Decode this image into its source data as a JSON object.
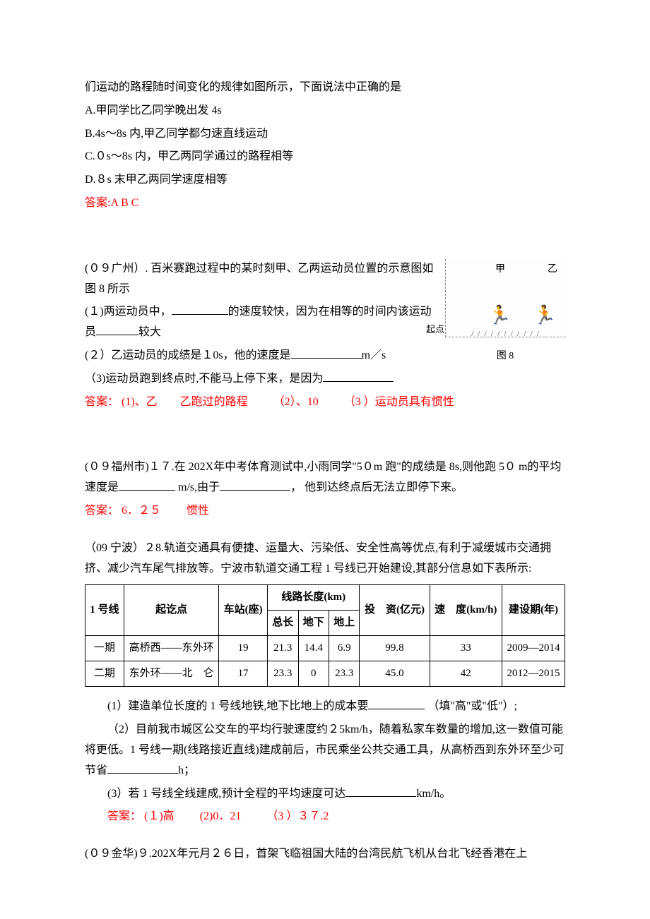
{
  "q1": {
    "stem": "们运动的路程随时间变化的规律如图所示，下面说法中正确的是",
    "optA": "A.甲同学比乙同学晚出发 4s",
    "optB": "B.4s～8s 内,甲乙同学都匀速直线运动",
    "optC": "C.０s～8s 内，甲乙两同学通过的路程相等",
    "optD": "D.８s 末甲乙两同学速度相等",
    "answer": "答案:A B C"
  },
  "q2": {
    "src": "(０９广州）. 百米赛跑过程中的某时刻甲、乙两运动员位置的示意图如图 8 所示",
    "p1a": "(１)两运动员中，",
    "p1b": "的速度较快，因为在相等的时间内该运动员",
    "p1c": "较大",
    "p2a": "(２）乙运动员的成绩是１0s，他的速度是",
    "p2b": "m／s",
    "p3a": "（3)运动员跑到终点时,不能马上停下来，是因为",
    "ans_label": "答案：",
    "ans1": "(1)、乙　　乙跑过的路程",
    "ans2": "（2）、10",
    "ans3": "（3 ）运动员具有惯性",
    "fig_jia": "甲",
    "fig_yi": "乙",
    "fig_start": "起点",
    "fig_caption": "图 8"
  },
  "q3": {
    "stem_a": "(０９福州市)１７.在 202X年中考体育测试中,小雨同学\"5０m 跑\"的成绩是 8s,则他跑 5０ m的平均速度是",
    "stem_b": " m/s,由于",
    "stem_c": "， 他到达终点后无法立即停下来。",
    "ans_label": "答案：",
    "ans1": "6．２５",
    "ans2": "惯性"
  },
  "q4": {
    "stem": "（09 宁波）２8.轨道交通具有便捷、运量大、污染低、安全性高等优点,有利于减缓城市交通拥挤、减少汽车尾气排放等。宁波市轨道交通工程 1 号线已开始建设,其部分信息如下表所示:",
    "table": {
      "headers": {
        "line": "1 号线",
        "route": "起讫点",
        "stations": "车站(座)",
        "length": "线路长度(km)",
        "len_total": "总长",
        "len_under": "地下",
        "len_above": "地上",
        "invest": "投　资(亿元)",
        "speed": "速　度(km/h)",
        "period": "建设期(年)"
      },
      "rows": [
        {
          "phase": "一期",
          "route": "高桥西——东外环",
          "stations": "19",
          "total": "21.3",
          "under": "14.4",
          "above": "6.9",
          "invest": "99.8",
          "speed": "33",
          "period": "2009—2014"
        },
        {
          "phase": "二期",
          "route": "东外环——北　仑",
          "stations": "17",
          "total": "23.3",
          "under": "0",
          "above": "23.3",
          "invest": "45.0",
          "speed": "42",
          "period": "2012—2015"
        }
      ]
    },
    "p1a": "(1）建造单位长度的 1 号线地铁,地下比地上的成本要",
    "p1b": " （填\"高\"或\"低\"）;",
    "p2a": "（2）目前我市城区公交车的平均行驶速度约２5km/h，随着私家车数量的增加,这一数值可能将更低。1 号线一期(线路接近直线)建成前后，市民乘坐公共交通工具，从高桥西到东外环至少可节省",
    "p2b": "h；",
    "p3a": "(3）若 1 号线全线建成,预计全程的平均速度可达",
    "p3b": "km/h。",
    "ans_label": "答案：",
    "ans1": "(１)高",
    "ans2": "(2)0．21",
    "ans3": "（3 ）３７.2"
  },
  "q5": {
    "stem": "(０９金华)９.202X年元月２６日，首架飞临祖国大陆的台湾民航飞机从台北飞经香港在上"
  }
}
